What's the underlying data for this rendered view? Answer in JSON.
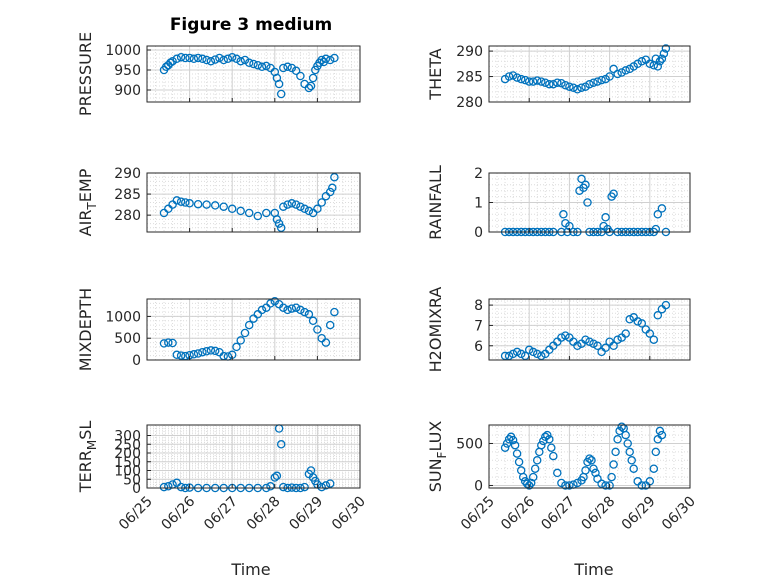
{
  "figure_title": "Figure 3 medium",
  "chart_data": [
    {
      "type": "scatter",
      "ylabel": "PRESSURE",
      "xlim": [
        "06/25",
        "06/30"
      ],
      "ylim": [
        870,
        1010
      ],
      "yticks": [
        900,
        950,
        1000
      ],
      "grid": true,
      "xticks": [
        "06/25",
        "06/26",
        "06/27",
        "06/28",
        "06/29",
        "06/30"
      ],
      "x": [
        25.4,
        25.45,
        25.5,
        25.55,
        25.6,
        25.7,
        25.8,
        25.9,
        26.0,
        26.1,
        26.2,
        26.3,
        26.4,
        26.5,
        26.6,
        26.7,
        26.8,
        26.9,
        27.0,
        27.1,
        27.2,
        27.3,
        27.4,
        27.5,
        27.6,
        27.7,
        27.8,
        27.9,
        28.0,
        28.05,
        28.1,
        28.15,
        28.2,
        28.3,
        28.4,
        28.5,
        28.6,
        28.7,
        28.8,
        28.85,
        28.9,
        28.95,
        29.0,
        29.05,
        29.1,
        29.15,
        29.2,
        29.3,
        29.4
      ],
      "y": [
        950,
        958,
        962,
        968,
        972,
        978,
        982,
        980,
        980,
        978,
        980,
        978,
        975,
        972,
        976,
        980,
        975,
        978,
        982,
        978,
        972,
        975,
        968,
        965,
        962,
        958,
        960,
        955,
        945,
        930,
        915,
        890,
        955,
        958,
        955,
        948,
        935,
        915,
        905,
        910,
        930,
        950,
        960,
        968,
        975,
        970,
        978,
        975,
        980
      ]
    },
    {
      "type": "scatter",
      "ylabel": "THETA",
      "xlim": [
        "06/25",
        "06/30"
      ],
      "ylim": [
        280,
        291
      ],
      "yticks": [
        280,
        285,
        290
      ],
      "grid": true,
      "xticks": [
        "06/25",
        "06/26",
        "06/27",
        "06/28",
        "06/29",
        "06/30"
      ],
      "x": [
        25.4,
        25.5,
        25.6,
        25.7,
        25.8,
        25.9,
        26.0,
        26.1,
        26.2,
        26.3,
        26.4,
        26.5,
        26.6,
        26.7,
        26.8,
        26.9,
        27.0,
        27.1,
        27.2,
        27.3,
        27.4,
        27.5,
        27.6,
        27.7,
        27.8,
        27.9,
        28.0,
        28.1,
        28.2,
        28.3,
        28.4,
        28.5,
        28.6,
        28.7,
        28.8,
        28.9,
        29.0,
        29.1,
        29.15,
        29.2,
        29.25,
        29.3,
        29.35,
        29.4
      ],
      "y": [
        284.5,
        285,
        285.2,
        284.8,
        284.5,
        284.3,
        284,
        284,
        284.2,
        284,
        283.8,
        283.5,
        283.5,
        283.8,
        283.7,
        283.3,
        283,
        282.8,
        282.5,
        282.8,
        283,
        283.5,
        283.8,
        284,
        284.3,
        284.5,
        285,
        286.5,
        285.5,
        285.8,
        286.2,
        286.5,
        287,
        287.5,
        288,
        288.3,
        287.5,
        287.2,
        288.5,
        287,
        288,
        288.5,
        289.5,
        290.5
      ]
    },
    {
      "type": "scatter",
      "ylabel": "AIR_TEMP",
      "xlim": [
        "06/25",
        "06/30"
      ],
      "ylim": [
        276,
        290
      ],
      "yticks": [
        280,
        285,
        290
      ],
      "grid": true,
      "xticks": [
        "06/25",
        "06/26",
        "06/27",
        "06/28",
        "06/29",
        "06/30"
      ],
      "x": [
        25.4,
        25.5,
        25.6,
        25.7,
        25.8,
        25.9,
        26.0,
        26.2,
        26.4,
        26.6,
        26.8,
        27.0,
        27.2,
        27.4,
        27.6,
        27.8,
        28.0,
        28.05,
        28.1,
        28.15,
        28.2,
        28.3,
        28.4,
        28.5,
        28.6,
        28.7,
        28.8,
        28.9,
        29.0,
        29.1,
        29.2,
        29.3,
        29.35,
        29.4
      ],
      "y": [
        280.5,
        281.5,
        282.5,
        283.5,
        283.2,
        283,
        282.8,
        282.6,
        282.5,
        282.3,
        282,
        281.5,
        281,
        280.5,
        279.8,
        280.5,
        280.5,
        279,
        278,
        277,
        282,
        282.5,
        282.8,
        282.5,
        282,
        281.5,
        281,
        280.5,
        281.5,
        283,
        284.5,
        285.5,
        286.5,
        289
      ]
    },
    {
      "type": "scatter",
      "ylabel": "RAINFALL",
      "xlim": [
        "06/25",
        "06/30"
      ],
      "ylim": [
        0,
        2
      ],
      "yticks": [
        0,
        1,
        2
      ],
      "grid": true,
      "xticks": [
        "06/25",
        "06/26",
        "06/27",
        "06/28",
        "06/29",
        "06/30"
      ],
      "x": [
        25.4,
        25.5,
        25.6,
        25.7,
        25.8,
        25.9,
        26.0,
        26.1,
        26.2,
        26.3,
        26.4,
        26.5,
        26.6,
        26.8,
        26.85,
        26.9,
        26.95,
        27.0,
        27.1,
        27.2,
        27.25,
        27.3,
        27.35,
        27.4,
        27.45,
        27.5,
        27.6,
        27.7,
        27.8,
        27.85,
        27.9,
        27.95,
        28.0,
        28.05,
        28.1,
        28.2,
        28.3,
        28.4,
        28.5,
        28.6,
        28.7,
        28.8,
        28.9,
        29.0,
        29.1,
        29.15,
        29.2,
        29.3,
        29.4
      ],
      "y": [
        0,
        0,
        0,
        0,
        0,
        0,
        0,
        0,
        0,
        0,
        0,
        0,
        0,
        0,
        0.6,
        0.3,
        0,
        0.2,
        0,
        0,
        1.4,
        1.8,
        1.5,
        1.6,
        1.0,
        0,
        0,
        0,
        0,
        0.2,
        0.5,
        0.1,
        0,
        1.2,
        1.3,
        0,
        0,
        0,
        0,
        0,
        0,
        0,
        0,
        0,
        0,
        0.1,
        0.6,
        0.8,
        0
      ]
    },
    {
      "type": "scatter",
      "ylabel": "MIXDEPTH",
      "xlim": [
        "06/25",
        "06/30"
      ],
      "ylim": [
        0,
        1400
      ],
      "yticks": [
        0,
        500,
        1000
      ],
      "grid": true,
      "xticks": [
        "06/25",
        "06/26",
        "06/27",
        "06/28",
        "06/29",
        "06/30"
      ],
      "x": [
        25.4,
        25.5,
        25.6,
        25.7,
        25.8,
        25.9,
        26.0,
        26.1,
        26.2,
        26.3,
        26.4,
        26.5,
        26.6,
        26.7,
        26.8,
        26.9,
        27.0,
        27.1,
        27.2,
        27.3,
        27.4,
        27.5,
        27.6,
        27.7,
        27.8,
        27.9,
        28.0,
        28.1,
        28.2,
        28.3,
        28.4,
        28.5,
        28.6,
        28.7,
        28.8,
        28.9,
        29.0,
        29.1,
        29.2,
        29.3,
        29.4
      ],
      "y": [
        380,
        400,
        390,
        120,
        100,
        90,
        110,
        130,
        150,
        180,
        200,
        220,
        210,
        180,
        90,
        80,
        120,
        300,
        450,
        620,
        800,
        950,
        1050,
        1150,
        1200,
        1300,
        1350,
        1280,
        1200,
        1150,
        1180,
        1200,
        1150,
        1100,
        1050,
        900,
        700,
        500,
        400,
        800,
        1100
      ]
    },
    {
      "type": "scatter",
      "ylabel": "H2OMIXRA",
      "xlim": [
        "06/25",
        "06/30"
      ],
      "ylim": [
        5.3,
        8.3
      ],
      "yticks": [
        6,
        7,
        8
      ],
      "grid": true,
      "xticks": [
        "06/25",
        "06/26",
        "06/27",
        "06/28",
        "06/29",
        "06/30"
      ],
      "x": [
        25.4,
        25.5,
        25.6,
        25.7,
        25.8,
        25.9,
        26.0,
        26.1,
        26.2,
        26.3,
        26.4,
        26.5,
        26.6,
        26.7,
        26.8,
        26.9,
        27.0,
        27.1,
        27.2,
        27.3,
        27.4,
        27.5,
        27.6,
        27.7,
        27.8,
        27.9,
        28.0,
        28.1,
        28.2,
        28.3,
        28.4,
        28.5,
        28.6,
        28.7,
        28.8,
        28.9,
        29.0,
        29.1,
        29.2,
        29.3,
        29.4
      ],
      "y": [
        5.5,
        5.5,
        5.6,
        5.7,
        5.6,
        5.5,
        5.8,
        5.7,
        5.6,
        5.5,
        5.6,
        5.8,
        6.0,
        6.2,
        6.4,
        6.5,
        6.4,
        6.2,
        6.0,
        6.1,
        6.3,
        6.2,
        6.1,
        6.0,
        5.7,
        5.9,
        6.2,
        6.0,
        6.3,
        6.4,
        6.6,
        7.3,
        7.4,
        7.2,
        7.1,
        6.8,
        6.6,
        6.3,
        7.5,
        7.8,
        8.0
      ]
    },
    {
      "type": "scatter",
      "ylabel": "TERR_MSL",
      "xlim": [
        "06/25",
        "06/30"
      ],
      "ylim": [
        0,
        360
      ],
      "yticks": [
        0,
        50,
        100,
        150,
        200,
        250,
        300
      ],
      "grid": true,
      "xticks": [
        "06/25",
        "06/26",
        "06/27",
        "06/28",
        "06/29",
        "06/30"
      ],
      "x": [
        25.4,
        25.5,
        25.6,
        25.7,
        25.8,
        25.9,
        26.0,
        26.2,
        26.4,
        26.6,
        26.8,
        27.0,
        27.2,
        27.4,
        27.6,
        27.8,
        27.9,
        28.0,
        28.05,
        28.1,
        28.15,
        28.2,
        28.3,
        28.4,
        28.5,
        28.6,
        28.7,
        28.8,
        28.85,
        28.9,
        28.95,
        29.0,
        29.1,
        29.2,
        29.3
      ],
      "y": [
        5,
        10,
        20,
        30,
        5,
        0,
        2,
        0,
        0,
        0,
        0,
        0,
        0,
        0,
        0,
        0,
        10,
        60,
        70,
        340,
        250,
        5,
        0,
        2,
        0,
        0,
        5,
        80,
        100,
        60,
        40,
        20,
        5,
        15,
        25
      ]
    },
    {
      "type": "scatter",
      "ylabel": "SUN_FLUX",
      "xlim": [
        "06/25",
        "06/30"
      ],
      "ylim": [
        -30,
        720
      ],
      "yticks": [
        0,
        500
      ],
      "grid": true,
      "xticks": [
        "06/25",
        "06/26",
        "06/27",
        "06/28",
        "06/29",
        "06/30"
      ],
      "x": [
        25.4,
        25.45,
        25.5,
        25.55,
        25.6,
        25.65,
        25.7,
        25.75,
        25.8,
        25.85,
        25.9,
        25.95,
        26.0,
        26.05,
        26.1,
        26.15,
        26.2,
        26.25,
        26.3,
        26.35,
        26.4,
        26.45,
        26.5,
        26.55,
        26.6,
        26.7,
        26.8,
        26.9,
        27.0,
        27.1,
        27.2,
        27.3,
        27.35,
        27.4,
        27.45,
        27.5,
        27.55,
        27.6,
        27.65,
        27.7,
        27.8,
        27.9,
        28.0,
        28.05,
        28.1,
        28.15,
        28.2,
        28.25,
        28.3,
        28.35,
        28.4,
        28.45,
        28.5,
        28.55,
        28.6,
        28.7,
        28.8,
        28.9,
        29.0,
        29.1,
        29.15,
        29.2,
        29.25,
        29.3
      ],
      "y": [
        450,
        500,
        550,
        580,
        540,
        480,
        380,
        280,
        180,
        100,
        50,
        20,
        0,
        30,
        100,
        200,
        300,
        400,
        480,
        530,
        580,
        600,
        550,
        450,
        350,
        150,
        30,
        0,
        0,
        10,
        30,
        60,
        100,
        180,
        280,
        320,
        300,
        200,
        150,
        80,
        20,
        0,
        0,
        100,
        250,
        400,
        550,
        650,
        700,
        680,
        600,
        500,
        400,
        300,
        200,
        50,
        0,
        0,
        50,
        200,
        400,
        550,
        650,
        600
      ]
    }
  ]
}
